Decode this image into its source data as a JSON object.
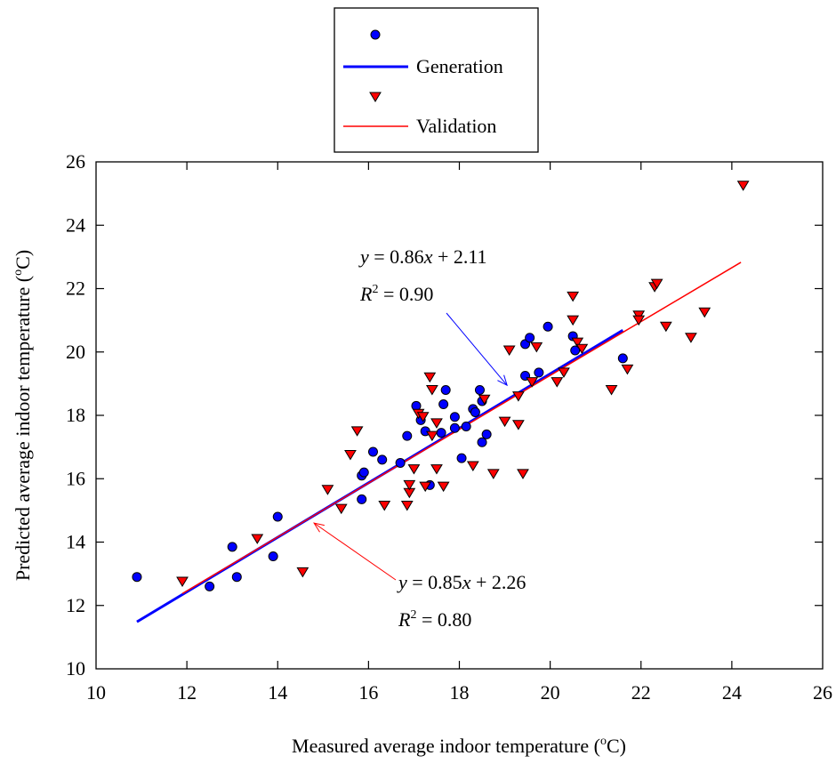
{
  "chart_data": {
    "type": "scatter",
    "xlabel": "Measured average indoor temperature (",
    "ylabel": "Predicted average indoor temperature (",
    "unit_sup": "o",
    "unit_tail": "C)",
    "xlim": [
      10,
      26
    ],
    "ylim": [
      10,
      26
    ],
    "xticks": [
      "10",
      "12",
      "14",
      "16",
      "18",
      "20",
      "22",
      "24",
      "26"
    ],
    "yticks": [
      "10",
      "12",
      "14",
      "16",
      "18",
      "20",
      "22",
      "24",
      "26"
    ],
    "grid": false,
    "legend_placement": "top-center",
    "legend": {
      "generation_label": "Generation",
      "validation_label": "Validation"
    },
    "series": [
      {
        "name": "Generation",
        "marker": "circle",
        "color": "#0000ff",
        "points": [
          [
            10.9,
            12.9
          ],
          [
            12.5,
            12.6
          ],
          [
            13.0,
            13.85
          ],
          [
            13.1,
            12.9
          ],
          [
            13.9,
            13.55
          ],
          [
            14.0,
            14.8
          ],
          [
            15.85,
            16.1
          ],
          [
            15.85,
            15.35
          ],
          [
            15.9,
            16.2
          ],
          [
            16.1,
            16.85
          ],
          [
            16.3,
            16.6
          ],
          [
            16.7,
            16.5
          ],
          [
            16.85,
            17.35
          ],
          [
            17.05,
            18.3
          ],
          [
            17.15,
            17.85
          ],
          [
            17.25,
            17.5
          ],
          [
            17.35,
            15.8
          ],
          [
            17.6,
            17.45
          ],
          [
            17.65,
            18.35
          ],
          [
            17.7,
            18.8
          ],
          [
            17.9,
            17.95
          ],
          [
            17.9,
            17.6
          ],
          [
            18.05,
            16.65
          ],
          [
            18.15,
            17.65
          ],
          [
            18.3,
            18.2
          ],
          [
            18.35,
            18.1
          ],
          [
            18.45,
            18.8
          ],
          [
            18.5,
            17.15
          ],
          [
            18.5,
            18.45
          ],
          [
            18.6,
            17.4
          ],
          [
            19.45,
            19.25
          ],
          [
            19.45,
            20.25
          ],
          [
            19.55,
            20.45
          ],
          [
            19.75,
            19.35
          ],
          [
            19.95,
            20.8
          ],
          [
            20.5,
            20.5
          ],
          [
            20.55,
            20.05
          ],
          [
            21.6,
            19.8
          ]
        ],
        "fit": {
          "slope": 0.86,
          "intercept": 2.11,
          "x_range": [
            10.9,
            21.6
          ],
          "color": "#0000ff"
        }
      },
      {
        "name": "Validation",
        "marker": "triangle-down",
        "color": "#ff0000",
        "points": [
          [
            11.9,
            12.75
          ],
          [
            13.55,
            14.1
          ],
          [
            14.55,
            13.05
          ],
          [
            15.1,
            15.65
          ],
          [
            15.4,
            15.05
          ],
          [
            15.6,
            16.75
          ],
          [
            15.75,
            17.5
          ],
          [
            16.35,
            15.15
          ],
          [
            16.85,
            15.15
          ],
          [
            16.9,
            15.55
          ],
          [
            16.9,
            15.8
          ],
          [
            17.0,
            16.3
          ],
          [
            17.1,
            18.05
          ],
          [
            17.2,
            17.95
          ],
          [
            17.25,
            15.75
          ],
          [
            17.35,
            19.2
          ],
          [
            17.4,
            18.8
          ],
          [
            17.4,
            17.35
          ],
          [
            17.5,
            16.3
          ],
          [
            17.5,
            17.75
          ],
          [
            17.65,
            15.75
          ],
          [
            18.3,
            16.4
          ],
          [
            18.55,
            18.5
          ],
          [
            18.75,
            16.15
          ],
          [
            19.0,
            17.8
          ],
          [
            19.1,
            20.05
          ],
          [
            19.3,
            18.6
          ],
          [
            19.3,
            17.7
          ],
          [
            19.4,
            16.15
          ],
          [
            19.6,
            19.05
          ],
          [
            19.7,
            20.15
          ],
          [
            20.15,
            19.05
          ],
          [
            20.3,
            19.35
          ],
          [
            20.5,
            21.75
          ],
          [
            20.5,
            21.0
          ],
          [
            20.6,
            20.3
          ],
          [
            20.7,
            20.1
          ],
          [
            21.35,
            18.8
          ],
          [
            21.7,
            19.45
          ],
          [
            21.95,
            21.15
          ],
          [
            21.95,
            21.0
          ],
          [
            22.3,
            22.05
          ],
          [
            22.35,
            22.15
          ],
          [
            22.55,
            20.8
          ],
          [
            23.1,
            20.45
          ],
          [
            23.4,
            21.25
          ],
          [
            24.25,
            25.25
          ]
        ],
        "fit": {
          "slope": 0.85,
          "intercept": 2.26,
          "x_range": [
            11.9,
            24.2
          ],
          "color": "#ff0000"
        }
      }
    ],
    "annotations": {
      "generation": {
        "eq_y": "y",
        "eq_rest": " = 0.86",
        "eq_x": "x",
        "eq_tail": " + 2.11",
        "r2_R": "R",
        "r2_sup": "2",
        "r2_rest": " = 0.90",
        "arrow_to": [
          19.05,
          18.95
        ],
        "color": "#0000ff"
      },
      "validation": {
        "eq_y": "y",
        "eq_rest": " = 0.85",
        "eq_x": "x",
        "eq_tail": " + 2.26",
        "r2_R": "R",
        "r2_sup": "2",
        "r2_rest": " = 0.80",
        "arrow_to": [
          14.8,
          14.6
        ],
        "color": "#ff0000"
      }
    }
  }
}
